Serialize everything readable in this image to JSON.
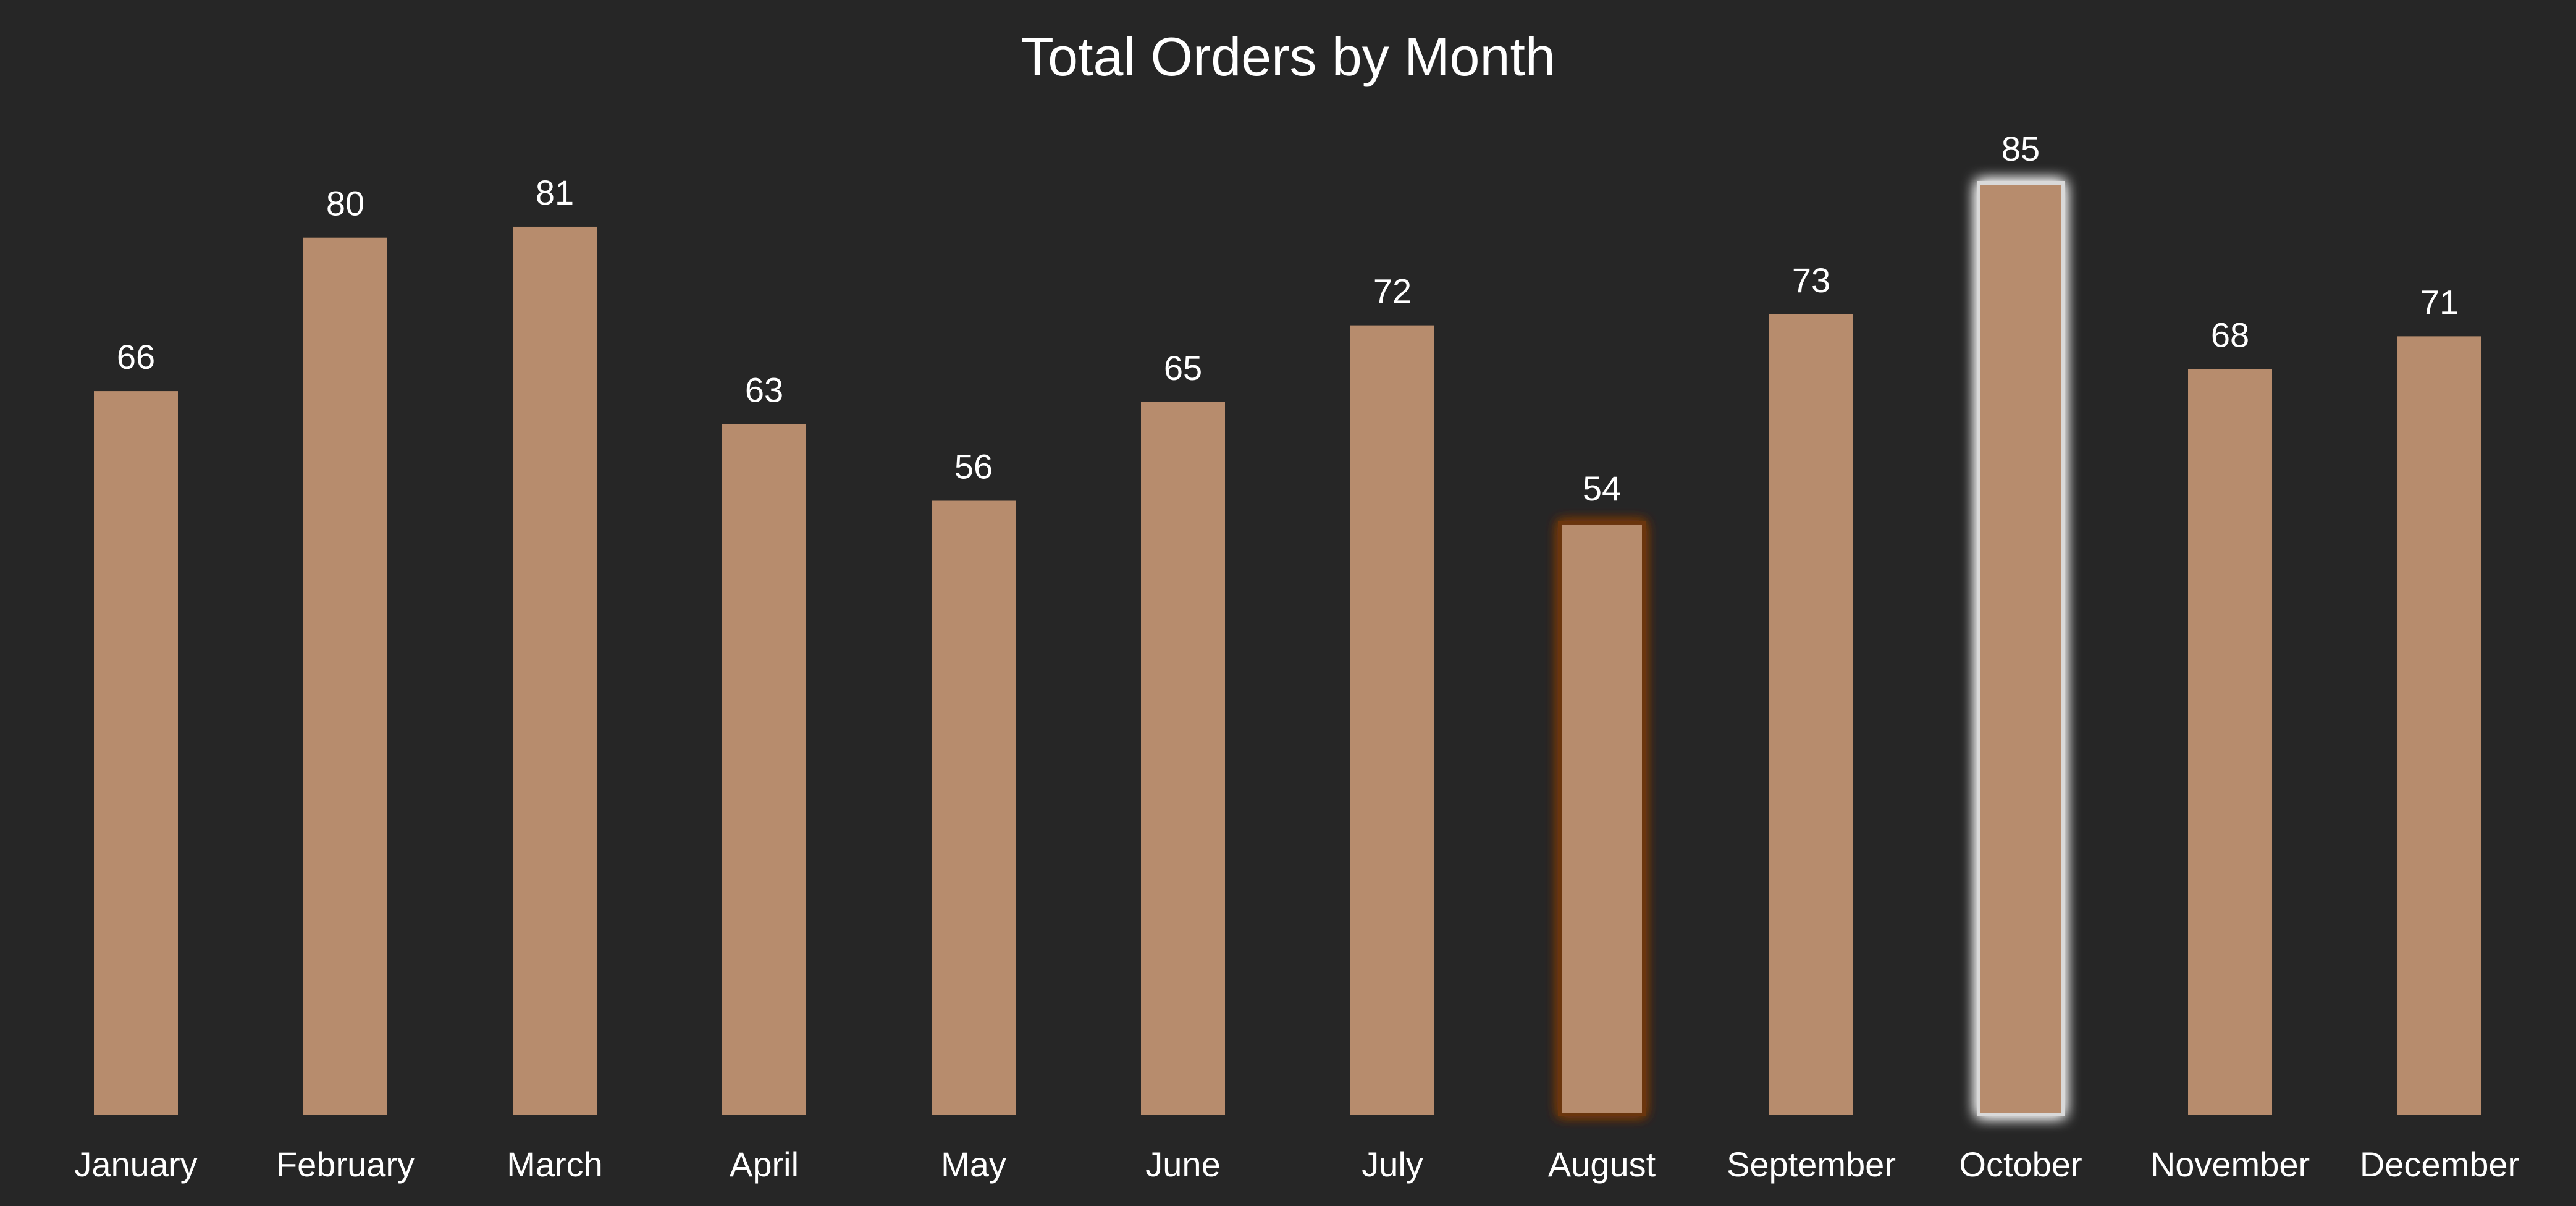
{
  "chart_data": {
    "type": "bar",
    "title": "Total Orders by Month",
    "xlabel": "",
    "ylabel": "",
    "categories": [
      "January",
      "February",
      "March",
      "April",
      "May",
      "June",
      "July",
      "August",
      "September",
      "October",
      "November",
      "December"
    ],
    "values": [
      66,
      80,
      81,
      63,
      56,
      65,
      72,
      54,
      73,
      85,
      68,
      71
    ],
    "ylim": [
      0,
      85
    ],
    "grid": false,
    "legend": "none",
    "data_labels": true,
    "highlight_min": "August",
    "highlight_max": "October",
    "colors": {
      "background": "#262626",
      "bar": "#b78c6d",
      "text": "#ffffff",
      "min_glow": "#6b3410",
      "max_glow": "#ffffff"
    }
  }
}
